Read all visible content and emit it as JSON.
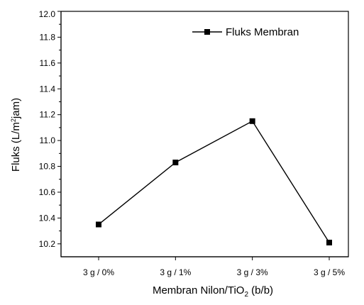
{
  "chart_data": {
    "type": "line",
    "categories": [
      "3 g / 0%",
      "3 g / 1%",
      "3 g / 3%",
      "3 g / 5%"
    ],
    "series": [
      {
        "name": "Fluks Membran",
        "values": [
          10.35,
          10.83,
          11.15,
          10.21
        ]
      }
    ],
    "xlabel": {
      "main": "Membran Nilon/TiO",
      "sub": "2",
      "suffix": " (b/b)"
    },
    "ylabel": {
      "main": "Fluks (L/m",
      "sup": "2",
      "suffix": "jam)"
    },
    "ylim": [
      10.1,
      12.0
    ],
    "yticks": [
      "10.2",
      "10.4",
      "10.6",
      "10.8",
      "11.0",
      "11.2",
      "11.4",
      "11.6",
      "11.8",
      "12.0"
    ],
    "grid": false,
    "legend_position": "top-right",
    "line_color": "#000000",
    "marker": "square"
  }
}
